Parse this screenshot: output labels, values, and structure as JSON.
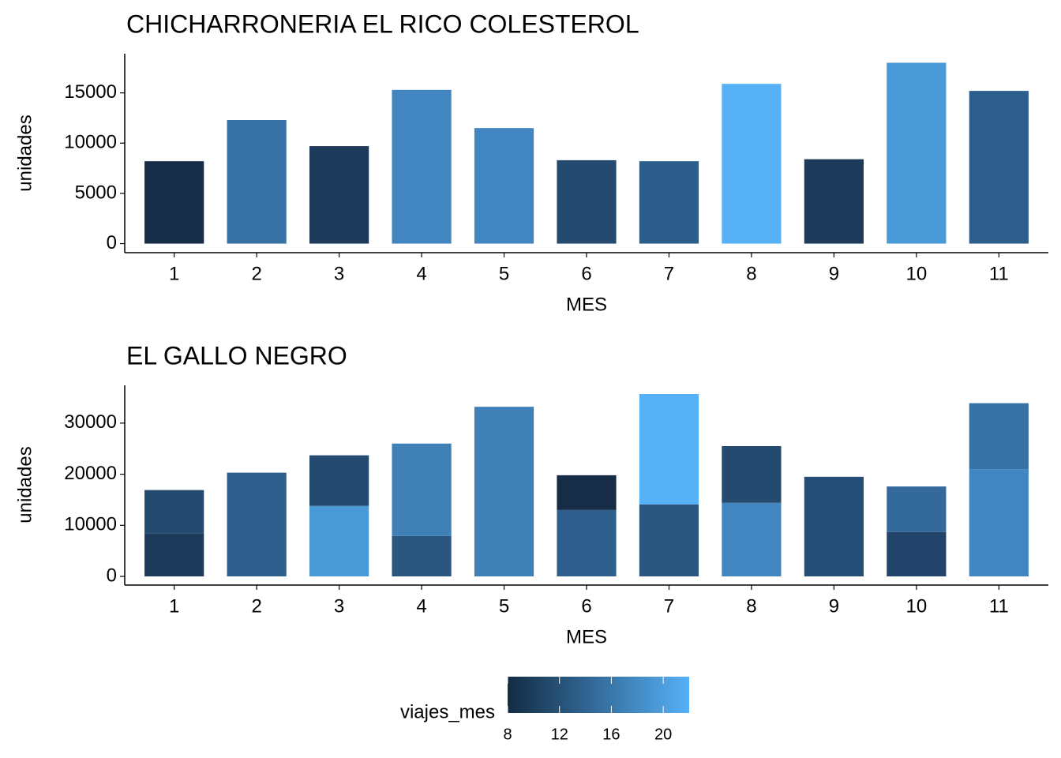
{
  "chart_data": [
    {
      "type": "bar",
      "title": "CHICHARRONERIA EL RICO COLESTEROL",
      "xlabel": "MES",
      "ylabel": "unidades",
      "categories": [
        "1",
        "2",
        "3",
        "4",
        "5",
        "6",
        "7",
        "8",
        "9",
        "10",
        "11"
      ],
      "series": [
        {
          "values": [
            8200,
            12300,
            9700,
            15300,
            11500,
            8300,
            8200,
            15900,
            8400,
            18000,
            15200
          ],
          "colors": [
            "#172c46",
            "#3872a4",
            "#1e3a5a",
            "#4286c1",
            "#4286c1",
            "#254a70",
            "#2c5d8a",
            "#56b1f7",
            "#1e3a5a",
            "#4b9ad8",
            "#2e5f8c"
          ]
        }
      ],
      "ylim": [
        -900,
        18900
      ],
      "yticks": [
        0,
        5000,
        10000,
        15000
      ],
      "grid": false
    },
    {
      "type": "bar",
      "title": "EL GALLO NEGRO",
      "xlabel": "MES",
      "ylabel": "unidades",
      "categories": [
        "1",
        "2",
        "3",
        "4",
        "5",
        "6",
        "7",
        "8",
        "9",
        "10",
        "11"
      ],
      "series": [
        {
          "values": [
            8400,
            20300,
            13800,
            7900,
            33200,
            13000,
            14100,
            14400,
            19500,
            8700,
            21000
          ],
          "colors": [
            "#1e3a5a",
            "#2e5f8c",
            "#4b9ad8",
            "#2a5680",
            "#3f80b7",
            "#2e5f8c",
            "#2a5680",
            "#4286c1",
            "#254e76",
            "#22446a",
            "#4286c1"
          ]
        },
        {
          "values": [
            8500,
            null,
            9900,
            18100,
            null,
            6800,
            21600,
            11100,
            null,
            8900,
            12900
          ],
          "colors": [
            "#254a70",
            null,
            "#254a70",
            "#3f80b7",
            null,
            "#172c46",
            "#56b1f7",
            "#254a70",
            null,
            "#336a9b",
            "#3872a4"
          ]
        }
      ],
      "ylim": [
        -1700,
        37400
      ],
      "yticks": [
        0,
        10000,
        20000,
        30000
      ],
      "grid": false
    }
  ],
  "legend": {
    "title": "viajes_mes",
    "lim": [
      8,
      22
    ],
    "ticks": [
      8,
      12,
      16,
      20
    ],
    "colors": [
      "#132b43",
      "#56b1f7"
    ]
  }
}
